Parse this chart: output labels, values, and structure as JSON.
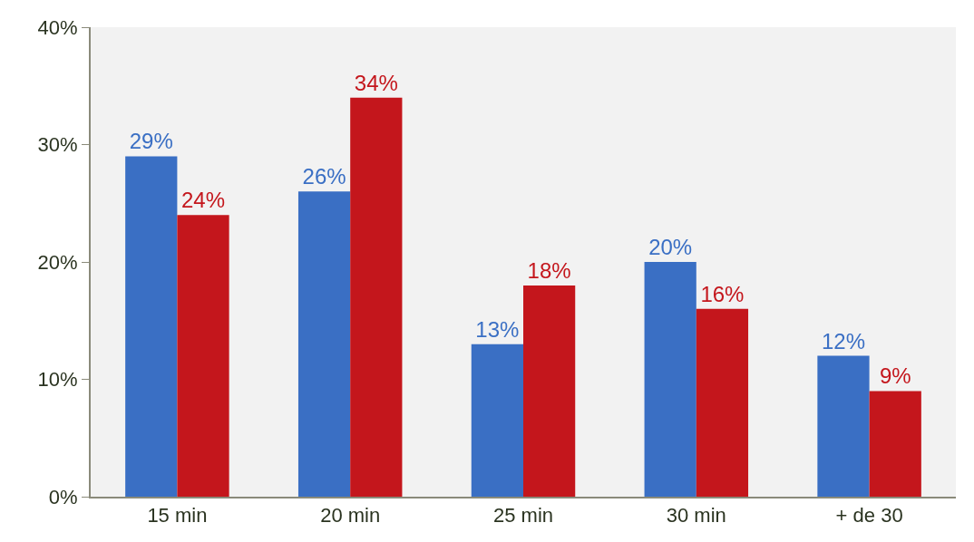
{
  "chart_data": {
    "type": "bar",
    "categories": [
      "15 min",
      "20 min",
      "25 min",
      "30 min",
      "+ de 30"
    ],
    "series": [
      {
        "color": "#3a6fc4",
        "values": [
          29,
          26,
          13,
          20,
          12
        ],
        "value_labels": [
          "29%",
          "26%",
          "13%",
          "20%",
          "12%"
        ]
      },
      {
        "color": "#c4161c",
        "values": [
          24,
          34,
          18,
          16,
          9
        ],
        "value_labels": [
          "24%",
          "34%",
          "18%",
          "16%",
          "9%"
        ]
      }
    ],
    "ylim": [
      0,
      40
    ],
    "yticks": [
      {
        "value": 0,
        "label": "0%"
      },
      {
        "value": 10,
        "label": "10%"
      },
      {
        "value": 20,
        "label": "20%"
      },
      {
        "value": 30,
        "label": "30%"
      },
      {
        "value": 40,
        "label": "40%"
      }
    ],
    "grid": false,
    "legend": false
  }
}
